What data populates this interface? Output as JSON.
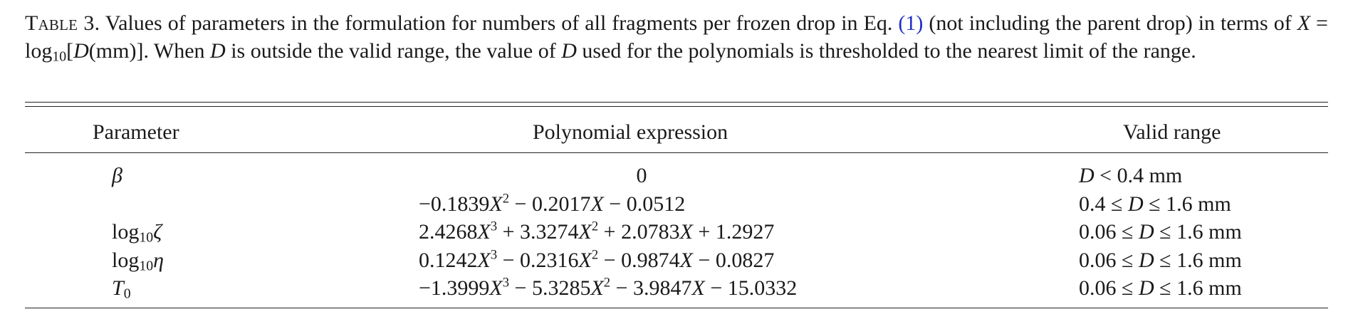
{
  "caption": {
    "label": "Table 3.",
    "text_1": " Values of parameters in the formulation for numbers of all fragments per frozen drop in Eq. ",
    "eq_ref": "(1)",
    "text_2": " (not including the parent drop) in terms of ",
    "var_x": "X",
    "eq_sign": " = log",
    "sub_10": "10",
    "bracket_open": "[",
    "var_d": "D",
    "unit": "(mm)]. When ",
    "var_d2": "D",
    "text_3": " is outside the valid range, the value of ",
    "var_d3": "D",
    "text_4": " used for the polynomials is thresholded to the nearest limit of the range."
  },
  "table": {
    "headers": {
      "parameter": "Parameter",
      "polynomial": "Polynomial expression",
      "range": "Valid range"
    },
    "rows": [
      {
        "param": "β",
        "poly": "0",
        "range_var": "D",
        "range_text": " < 0.4 mm"
      },
      {
        "param": "",
        "poly_a": "−0.1839",
        "poly_b": " − 0.2017",
        "poly_c": " − 0.0512",
        "range_pre": "0.4 ≤ ",
        "range_var": "D",
        "range_post": " ≤ 1.6 mm"
      },
      {
        "param_pre": "log",
        "param_sub": "10",
        "param_sym": "ζ",
        "poly_a": "2.4268",
        "poly_b": " + 3.3274",
        "poly_c": " + 2.0783",
        "poly_d": " + 1.2927",
        "range_pre": "0.06 ≤ ",
        "range_var": "D",
        "range_post": " ≤ 1.6 mm"
      },
      {
        "param_pre": "log",
        "param_sub": "10",
        "param_sym": "η",
        "poly_a": "0.1242",
        "poly_b": " − 0.2316",
        "poly_c": " − 0.9874",
        "poly_d": " − 0.0827",
        "range_pre": "0.06 ≤ ",
        "range_var": "D",
        "range_post": " ≤ 1.6 mm"
      },
      {
        "param_sym": "T",
        "param_sub": "0",
        "poly_a": "−1.3999",
        "poly_b": " − 5.3285",
        "poly_c": " − 3.9847",
        "poly_d": " − 15.0332",
        "range_pre": "0.06 ≤ ",
        "range_var": "D",
        "range_post": " ≤ 1.6 mm"
      }
    ],
    "symbols": {
      "x": "X",
      "exp2": "2",
      "exp3": "3"
    }
  }
}
